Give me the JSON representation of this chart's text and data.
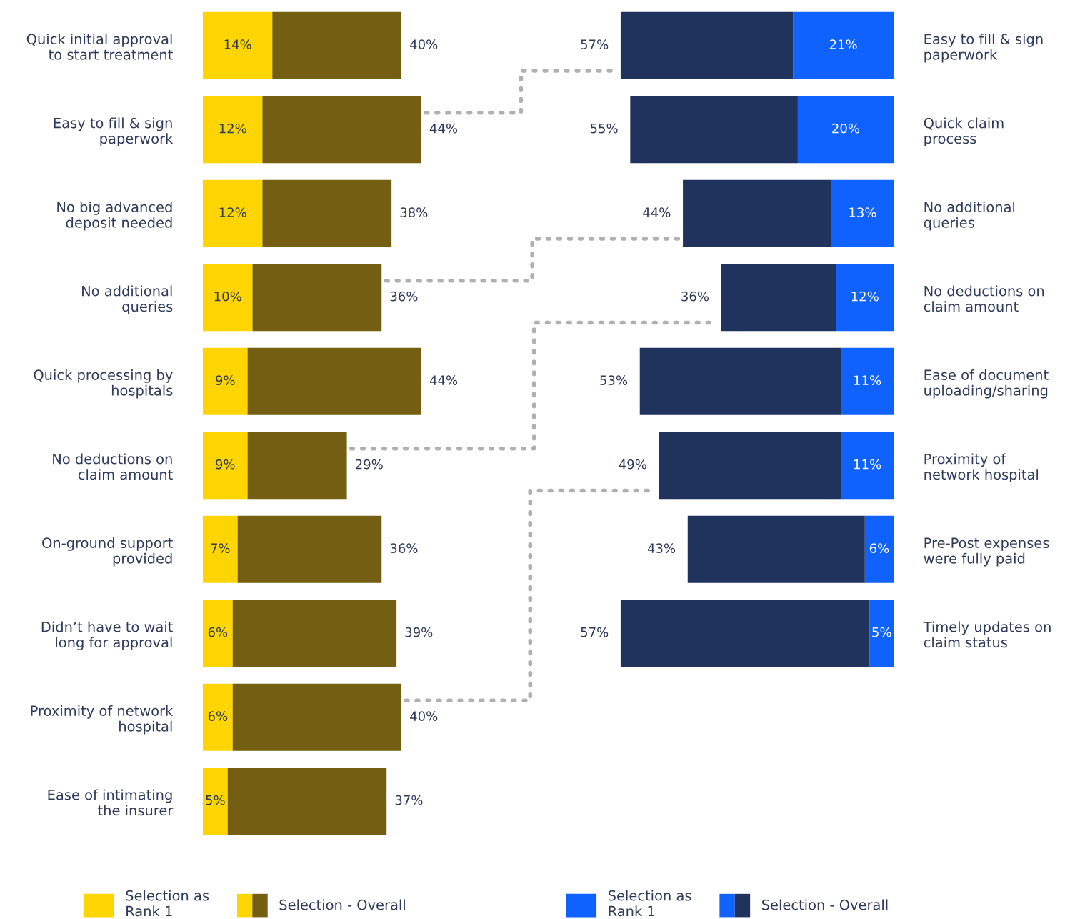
{
  "chart_data": [
    {
      "type": "bar",
      "orientation": "horizontal",
      "stacked": true,
      "tick_labels": "y",
      "legend": "bottom",
      "categories": [
        "Quick initial approval\nto start treatment",
        "Easy to fill & sign\npaperwork",
        "No big advanced\ndeposit needed",
        "No additional\nqueries",
        "Quick processing by\nhospitals",
        "No deductions on\nclaim amount",
        "On-ground support\nprovided",
        "Didn’t have to wait\nlong for approval",
        "Proximity of network\nhospital",
        "Ease of intimating\nthe insurer"
      ],
      "series": [
        {
          "name": "Selection as\nRank 1",
          "color": "#ffd500",
          "values": [
            14,
            12,
            12,
            10,
            9,
            9,
            7,
            6,
            6,
            5
          ],
          "value_labels": [
            "14%",
            "12%",
            "12%",
            "10%",
            "9%",
            "9%",
            "7%",
            "6%",
            "6%",
            "5%"
          ]
        },
        {
          "name": "Selection - Overall",
          "color": "#735e12",
          "values": [
            26,
            32,
            26,
            26,
            35,
            20,
            29,
            33,
            34,
            32
          ]
        }
      ],
      "totals": [
        "40%",
        "44%",
        "38%",
        "36%",
        "44%",
        "29%",
        "36%",
        "39%",
        "40%",
        "37%"
      ]
    },
    {
      "type": "bar",
      "orientation": "horizontal",
      "stacked": true,
      "tick_labels": "y",
      "legend": "bottom",
      "categories": [
        "Easy to fill & sign\npaperwork",
        "Quick claim\nprocess",
        "No additional\nqueries",
        "No deductions on\nclaim amount",
        "Ease of document\nuploading/sharing",
        "Proximity of\nnetwork hospital",
        "Pre-Post expenses\nwere fully paid",
        "Timely updates on\nclaim status"
      ],
      "series": [
        {
          "name": "Selection as\nRank 1",
          "color": "#0f62fe",
          "values": [
            21,
            20,
            13,
            12,
            11,
            11,
            6,
            5
          ],
          "value_labels": [
            "21%",
            "20%",
            "13%",
            "12%",
            "11%",
            "11%",
            "6%",
            "5%"
          ]
        },
        {
          "name": "Selection - Overall",
          "color": "#1f335c",
          "values": [
            36,
            35,
            31,
            24,
            42,
            38,
            37,
            52
          ]
        }
      ],
      "totals": [
        "57%",
        "55%",
        "44%",
        "36%",
        "53%",
        "49%",
        "43%",
        "57%"
      ]
    }
  ]
}
